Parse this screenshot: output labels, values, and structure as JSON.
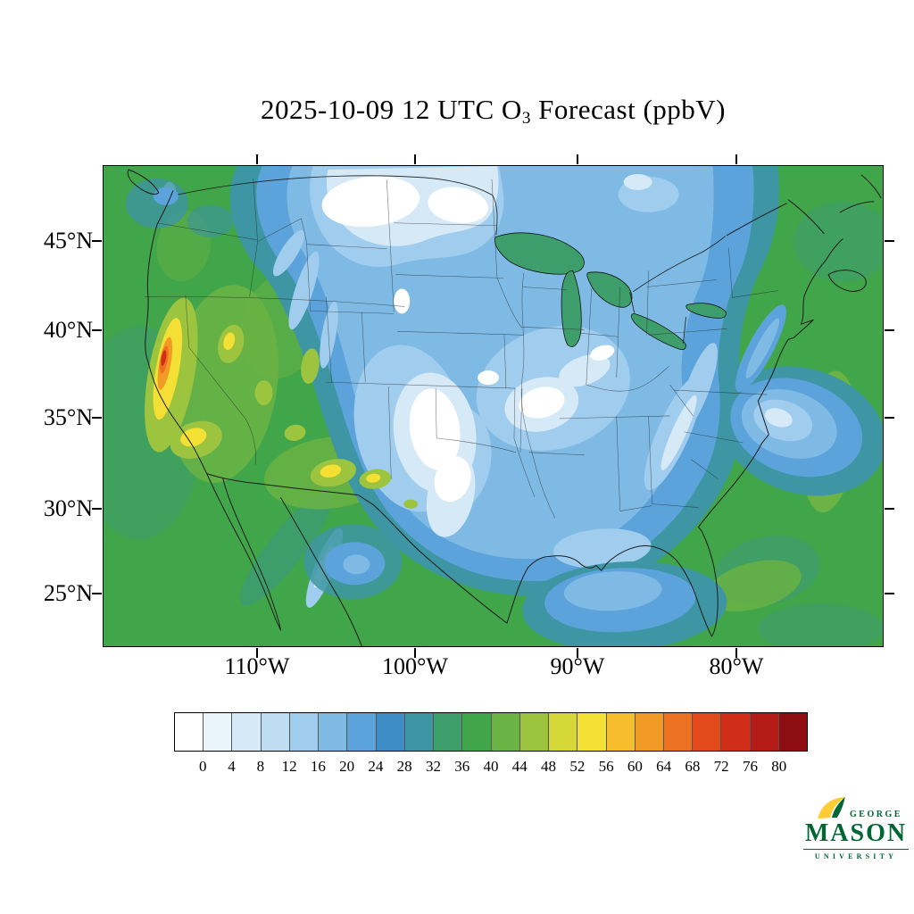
{
  "title": {
    "prefix": "2025-10-09 12 UTC O",
    "subscript": "3",
    "suffix": " Forecast (ppbV)"
  },
  "axes": {
    "lat_labels": [
      "45°N",
      "40°N",
      "35°N",
      "30°N",
      "25°N"
    ],
    "lon_labels": [
      "110°W",
      "100°W",
      "90°W",
      "80°W"
    ]
  },
  "colorbar": {
    "tick_labels": [
      "0",
      "4",
      "8",
      "12",
      "16",
      "20",
      "24",
      "28",
      "32",
      "36",
      "40",
      "44",
      "48",
      "52",
      "56",
      "60",
      "64",
      "68",
      "72",
      "76",
      "80"
    ],
    "colors": [
      "#FFFFFF",
      "#EAF4FB",
      "#D6E9F7",
      "#BEDDF3",
      "#A0CDED",
      "#7FBAE5",
      "#5BA3DA",
      "#3E8CC6",
      "#3E95A3",
      "#3E9E6B",
      "#41A549",
      "#6BB344",
      "#9DC43F",
      "#D5D838",
      "#F4E034",
      "#F6BE2C",
      "#F29A26",
      "#EC7120",
      "#E2491B",
      "#D02E18",
      "#B51B16",
      "#8F0E12"
    ]
  },
  "logo": {
    "line1": "GEORGE",
    "line2": "MASON",
    "line3": "UNIVERSITY",
    "green": "#006633",
    "gold": "#FFCC33"
  },
  "chart_data": {
    "type": "heatmap",
    "title": "2025-10-09 12 UTC O3 Forecast (ppbV)",
    "variable": "O3 (ozone)",
    "units": "ppbV",
    "valid_time": "2025-10-09 12 UTC",
    "region": "Continental United States and surroundings (filled-contour forecast map)",
    "x_tick_labels": [
      "110°W",
      "100°W",
      "90°W",
      "80°W"
    ],
    "y_tick_labels": [
      "45°N",
      "40°N",
      "35°N",
      "30°N",
      "25°N"
    ],
    "colorbar_ticks": [
      0,
      4,
      8,
      12,
      16,
      20,
      24,
      28,
      32,
      36,
      40,
      44,
      48,
      52,
      56,
      60,
      64,
      68,
      72,
      76,
      80
    ],
    "colorbar_colors": [
      "#FFFFFF",
      "#EAF4FB",
      "#D6E9F7",
      "#BEDDF3",
      "#A0CDED",
      "#7FBAE5",
      "#5BA3DA",
      "#3E8CC6",
      "#3E95A3",
      "#3E9E6B",
      "#41A549",
      "#6BB344",
      "#9DC43F",
      "#D5D838",
      "#F4E034",
      "#F6BE2C",
      "#F29A26",
      "#EC7120",
      "#E2491B",
      "#D02E18",
      "#B51B16",
      "#8F0E12"
    ],
    "features": [
      {
        "region": "Kansas / Oklahoma / north Texas",
        "o3_ppbv": "0-8"
      },
      {
        "region": "Montana / North Dakota / Canadian Prairies",
        "o3_ppbv": "0-12"
      },
      {
        "region": "Missouri / mid-Mississippi Valley",
        "o3_ppbv": "4-12"
      },
      {
        "region": "Midwest and eastern US",
        "o3_ppbv": "12-28"
      },
      {
        "region": "Gulf of Mexico near coast",
        "o3_ppbv": "16-28"
      },
      {
        "region": "Western Atlantic off the Carolinas",
        "o3_ppbv": "8-24"
      },
      {
        "region": "Intermountain West / Great Basin",
        "o3_ppbv": "36-48"
      },
      {
        "region": "Sierra Nevada / eastern California hotspot",
        "o3_ppbv": "48-80+"
      },
      {
        "region": "Southern California / Arizona / New Mexico spots",
        "o3_ppbv": "44-56"
      },
      {
        "region": "Oceans and background",
        "o3_ppbv": "32-40"
      }
    ]
  }
}
